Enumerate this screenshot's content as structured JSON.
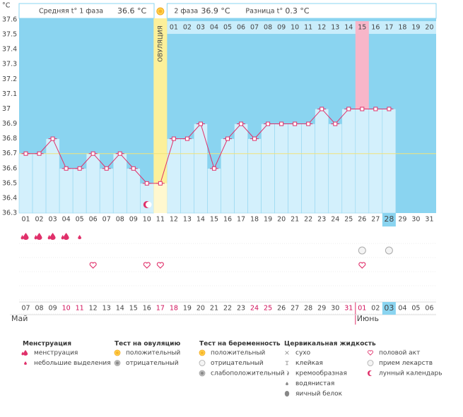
{
  "chart_data": {
    "type": "line",
    "unit": "°C",
    "header": {
      "phase1_label": "Средняя t° 1 фаза",
      "phase1_value": "36.6 °C",
      "phase2_label": "2 фаза",
      "phase2_value": "36.9 °C",
      "diff_label": "Разница t°",
      "diff_value": "0.3 °C"
    },
    "categories": [
      "01",
      "02",
      "03",
      "04",
      "05",
      "06",
      "07",
      "08",
      "09",
      "10",
      "11",
      "12",
      "13",
      "14",
      "15",
      "16",
      "17",
      "18",
      "19",
      "20",
      "21",
      "22",
      "23",
      "24",
      "25",
      "26",
      "27",
      "28",
      "29",
      "30",
      "31"
    ],
    "values": [
      36.7,
      36.7,
      36.8,
      36.6,
      36.6,
      36.7,
      36.6,
      36.7,
      36.6,
      36.5,
      36.5,
      36.8,
      36.8,
      36.9,
      36.6,
      36.8,
      36.9,
      36.8,
      36.9,
      36.9,
      36.9,
      36.9,
      37.0,
      36.9,
      37.0,
      37.0,
      37.0,
      37.0,
      null,
      null,
      null
    ],
    "color": "#e0306a",
    "ylim": [
      36.3,
      37.6
    ],
    "yticks": [
      36.3,
      36.4,
      36.5,
      36.6,
      36.7,
      36.8,
      36.9,
      37,
      37.1,
      37.2,
      37.3,
      37.4,
      37.5,
      37.6
    ],
    "grid": false,
    "cover_line": 36.7,
    "ovulation_day": "11",
    "ovulation_label": "ОВУЛЯЦИЯ",
    "phase2_days": [
      "01",
      "02",
      "03",
      "04",
      "05",
      "06",
      "07",
      "08",
      "09",
      "10",
      "11",
      "12",
      "13",
      "14",
      "15",
      "16",
      "17",
      "18",
      "19",
      "20"
    ],
    "highlight_phase2_day": "15",
    "today_day": "28",
    "today_date": "03",
    "menstruation": [
      "01",
      "02",
      "03",
      "04"
    ],
    "spotting": [
      "05"
    ],
    "intercourse": [
      "06",
      "10",
      "11",
      "26"
    ],
    "pregnancy_negative": [
      "26",
      "28"
    ],
    "moon": [
      "10"
    ],
    "dates": [
      {
        "label": "07"
      },
      {
        "label": "08"
      },
      {
        "label": "09"
      },
      {
        "label": "10",
        "weekend": true
      },
      {
        "label": "11",
        "weekend": true
      },
      {
        "label": "12"
      },
      {
        "label": "13"
      },
      {
        "label": "14"
      },
      {
        "label": "15"
      },
      {
        "label": "16"
      },
      {
        "label": "17",
        "weekend": true
      },
      {
        "label": "18",
        "weekend": true
      },
      {
        "label": "19"
      },
      {
        "label": "20"
      },
      {
        "label": "21"
      },
      {
        "label": "22"
      },
      {
        "label": "23"
      },
      {
        "label": "24",
        "weekend": true
      },
      {
        "label": "25",
        "weekend": true
      },
      {
        "label": "26"
      },
      {
        "label": "27"
      },
      {
        "label": "28"
      },
      {
        "label": "29"
      },
      {
        "label": "30"
      },
      {
        "label": "31",
        "weekend": true
      },
      {
        "label": "01",
        "weekend": true
      },
      {
        "label": "02"
      },
      {
        "label": "03"
      },
      {
        "label": "04"
      },
      {
        "label": "05"
      },
      {
        "label": "06"
      }
    ],
    "months": [
      {
        "label": "Май",
        "start": "01"
      },
      {
        "label": "Июнь",
        "start": "26"
      }
    ],
    "legend": [
      {
        "title": "Менструация",
        "items": [
          {
            "icon": "drop",
            "label": "менструация"
          },
          {
            "icon": "smalldrop",
            "label": "небольшие выделения"
          }
        ]
      },
      {
        "title": "Тест на овуляцию",
        "items": [
          {
            "icon": "sun",
            "label": "положительный"
          },
          {
            "icon": "grey",
            "label": "отрицательный"
          }
        ]
      },
      {
        "title": "Тест на беременность",
        "items": [
          {
            "icon": "sun",
            "label": "положительный"
          },
          {
            "icon": "white",
            "label": "отрицательный"
          },
          {
            "icon": "grey",
            "label": "слабоположительный"
          }
        ]
      },
      {
        "title": "Цервикальная жидкость",
        "items": [
          {
            "icon": "x",
            "label": "сухо"
          },
          {
            "icon": "t",
            "label": "клейкая"
          },
          {
            "icon": "cream",
            "label": "кремообразная"
          },
          {
            "icon": "smalldrop2",
            "label": "водянистая"
          },
          {
            "icon": "egg",
            "label": "яичный белок"
          }
        ]
      },
      {
        "title": "",
        "items": [
          {
            "icon": "heart",
            "label": "половой акт"
          },
          {
            "icon": "pill",
            "label": "прием лекарств"
          },
          {
            "icon": "moon",
            "label": "лунный календарь"
          }
        ]
      }
    ]
  }
}
